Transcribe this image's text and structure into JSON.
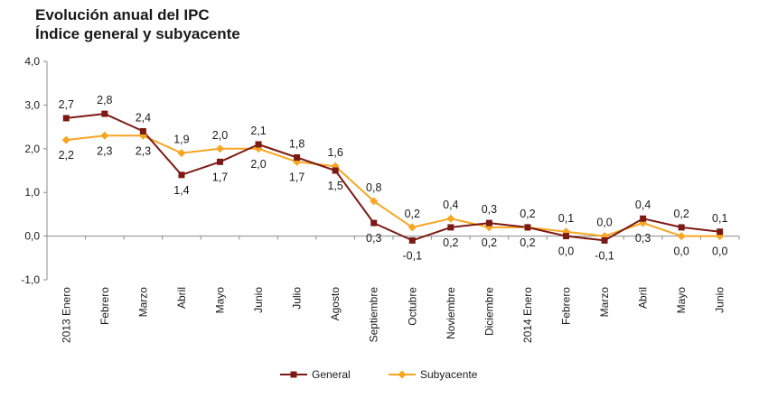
{
  "chart_data": {
    "type": "line",
    "title": "Evolución anual del IPC",
    "subtitle": "Índice general y subyacente",
    "xlabel": "",
    "ylabel": "",
    "categories": [
      "2013 Enero",
      "Febrero",
      "Marzo",
      "Abril",
      "Mayo",
      "Junio",
      "Julio",
      "Agosto",
      "Septiembre",
      "Octubre",
      "Noviembre",
      "Diciembre",
      "2014 Enero",
      "Febrero",
      "Marzo",
      "Abril",
      "Mayo",
      "Junio"
    ],
    "y_ticks": [
      "4,0",
      "3,0",
      "2,0",
      "1,0",
      "0,0",
      "-1,0"
    ],
    "ylim": [
      -1.0,
      4.0
    ],
    "grid": false,
    "legend_position": "bottom",
    "series": [
      {
        "name": "General",
        "color": "#7b1a14",
        "marker": "square",
        "values": [
          2.7,
          2.8,
          2.4,
          1.4,
          1.7,
          2.1,
          1.8,
          1.5,
          0.3,
          -0.1,
          0.2,
          0.3,
          0.2,
          0.0,
          -0.1,
          0.4,
          0.2,
          0.1
        ],
        "labels": [
          "2,7",
          "2,8",
          "2,4",
          "1,4",
          "1,7",
          "2,1",
          "1,8",
          "1,5",
          "0,3",
          "-0,1",
          "0,2",
          "0,3",
          "0,2",
          "0,0",
          "-0,1",
          "0,4",
          "0,2",
          "0,1"
        ]
      },
      {
        "name": "Subyacente",
        "color": "#f6a623",
        "marker": "diamond",
        "values": [
          2.2,
          2.3,
          2.3,
          1.9,
          2.0,
          2.0,
          1.7,
          1.6,
          0.8,
          0.2,
          0.4,
          0.2,
          0.2,
          0.1,
          0.0,
          0.3,
          0.0,
          0.0
        ],
        "labels": [
          "2,2",
          "2,3",
          "2,3",
          "1,9",
          "2,0",
          "2,0",
          "1,7",
          "1,6",
          "0,8",
          "0,2",
          "0,4",
          "0,2",
          "0,2",
          "0,1",
          "0,0",
          "0,3",
          "0,0",
          "0,0"
        ]
      }
    ]
  }
}
